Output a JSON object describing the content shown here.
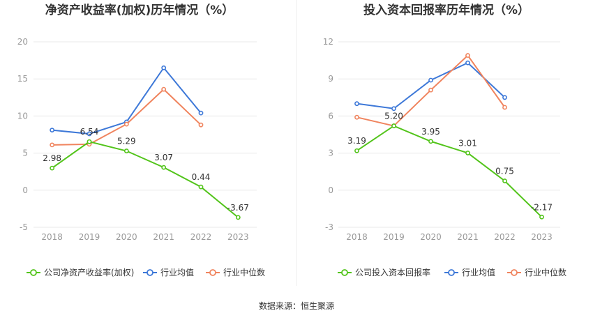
{
  "source": "数据来源：恒生聚源",
  "chart_data": [
    {
      "type": "line",
      "title": "净资产收益率(加权)历年情况（%）",
      "categories": [
        "2018",
        "2019",
        "2020",
        "2021",
        "2022",
        "2023"
      ],
      "ylim": [
        -5,
        20
      ],
      "yticks": [
        "20",
        "15",
        "10",
        "5",
        "0",
        "-5"
      ],
      "ytick_values": [
        20,
        15,
        10,
        5,
        0,
        -5
      ],
      "grid": true,
      "legend_position": "bottom",
      "series": [
        {
          "name": "公司净资产收益率(加权)",
          "color": "#52c41a",
          "values": [
            2.98,
            6.54,
            5.29,
            3.07,
            0.44,
            -3.67
          ],
          "labels": [
            "2.98",
            "6.54",
            "5.29",
            "3.07",
            "0.44",
            "-3.67"
          ]
        },
        {
          "name": "行业均值",
          "color": "#3d78d8",
          "values": [
            8.1,
            7.6,
            9.2,
            16.5,
            10.4,
            null
          ]
        },
        {
          "name": "行业中位数",
          "color": "#f0845e",
          "values": [
            6.1,
            6.2,
            8.9,
            13.6,
            8.8,
            null
          ]
        }
      ]
    },
    {
      "type": "line",
      "title": "投入资本回报率历年情况（%）",
      "categories": [
        "2018",
        "2019",
        "2020",
        "2021",
        "2022",
        "2023"
      ],
      "ylim": [
        -3,
        12
      ],
      "yticks": [
        "12",
        "9",
        "6",
        "3",
        "0",
        "-3"
      ],
      "ytick_values": [
        12,
        9,
        6,
        3,
        0,
        -3
      ],
      "grid": true,
      "legend_position": "bottom",
      "series": [
        {
          "name": "公司投入资本回报率",
          "color": "#52c41a",
          "values": [
            3.19,
            5.2,
            3.95,
            3.01,
            0.75,
            -2.17
          ],
          "labels": [
            "3.19",
            "5.20",
            "3.95",
            "3.01",
            "0.75",
            "-2.17"
          ]
        },
        {
          "name": "行业均值",
          "color": "#3d78d8",
          "values": [
            7.0,
            6.6,
            8.9,
            10.3,
            7.5,
            null
          ]
        },
        {
          "name": "行业中位数",
          "color": "#f0845e",
          "values": [
            5.9,
            5.2,
            8.1,
            10.9,
            6.7,
            null
          ]
        }
      ]
    }
  ]
}
